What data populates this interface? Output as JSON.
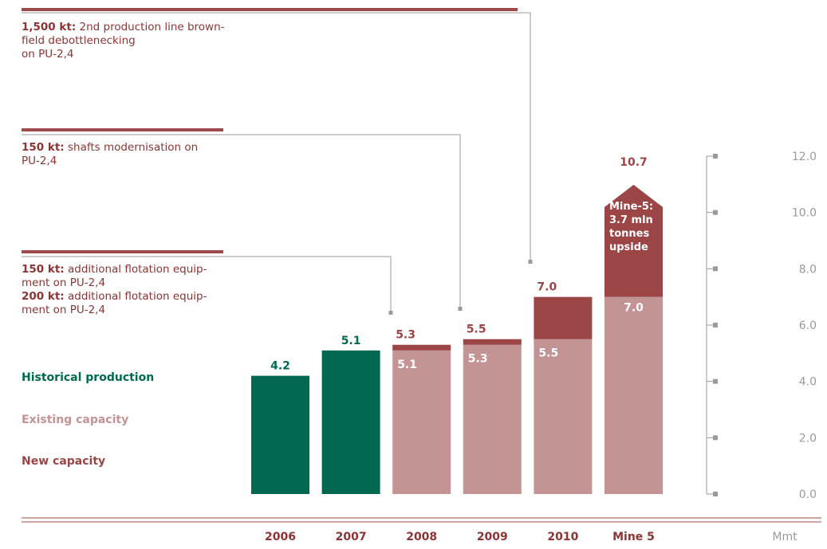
{
  "colors": {
    "historical": "#006950",
    "existing": "#c49393",
    "new": "#9b4546",
    "rule": "#9e4a4b",
    "axis": "#9a9a9a",
    "leader": "#9a9a9a"
  },
  "annotations": [
    {
      "bold": "1,500 kt:",
      "text": " 2nd production line brown-",
      "lines": [
        "field debottlenecking",
        "on PU-2,4"
      ]
    },
    {
      "bold": "150 kt:",
      "text": " shafts modernisation on",
      "lines": [
        "PU-2,4"
      ]
    },
    {
      "bold": "150 kt:",
      "text": " additional flotation equip-",
      "lines": [
        "ment on PU-2,4"
      ]
    },
    {
      "bold": "200 kt:",
      "text": " additional flotation equip-",
      "lines": [
        "ment on PU-2,4"
      ]
    }
  ],
  "legend": {
    "historical": "Historical production",
    "existing": "Existing capacity",
    "new": "New capacity"
  },
  "mine5_note": "Mine-5: 3.7 mln tonnes upside",
  "chart_data": {
    "type": "bar",
    "stacked": true,
    "unit": "Mmt",
    "categories": [
      "2006",
      "2007",
      "2008",
      "2009",
      "2010",
      "Mine 5"
    ],
    "series": [
      {
        "name": "Historical production",
        "values": [
          4.2,
          5.1,
          0,
          0,
          0,
          0
        ]
      },
      {
        "name": "Existing capacity",
        "values": [
          0,
          0,
          5.1,
          5.3,
          5.5,
          7.0
        ]
      },
      {
        "name": "New capacity",
        "values": [
          0,
          0,
          0.2,
          0.2,
          1.5,
          3.7
        ]
      }
    ],
    "totals": [
      "4.2",
      "5.1",
      "5.3",
      "5.5",
      "7.0",
      "10.7"
    ],
    "existing_labels": [
      "",
      "",
      "5.1",
      "5.3",
      "5.5",
      "7.0"
    ],
    "y_ticks": [
      "0.0",
      "2.0",
      "4.0",
      "6.0",
      "8.0",
      "10.0",
      "12.0"
    ],
    "ylim": [
      0,
      12
    ]
  }
}
